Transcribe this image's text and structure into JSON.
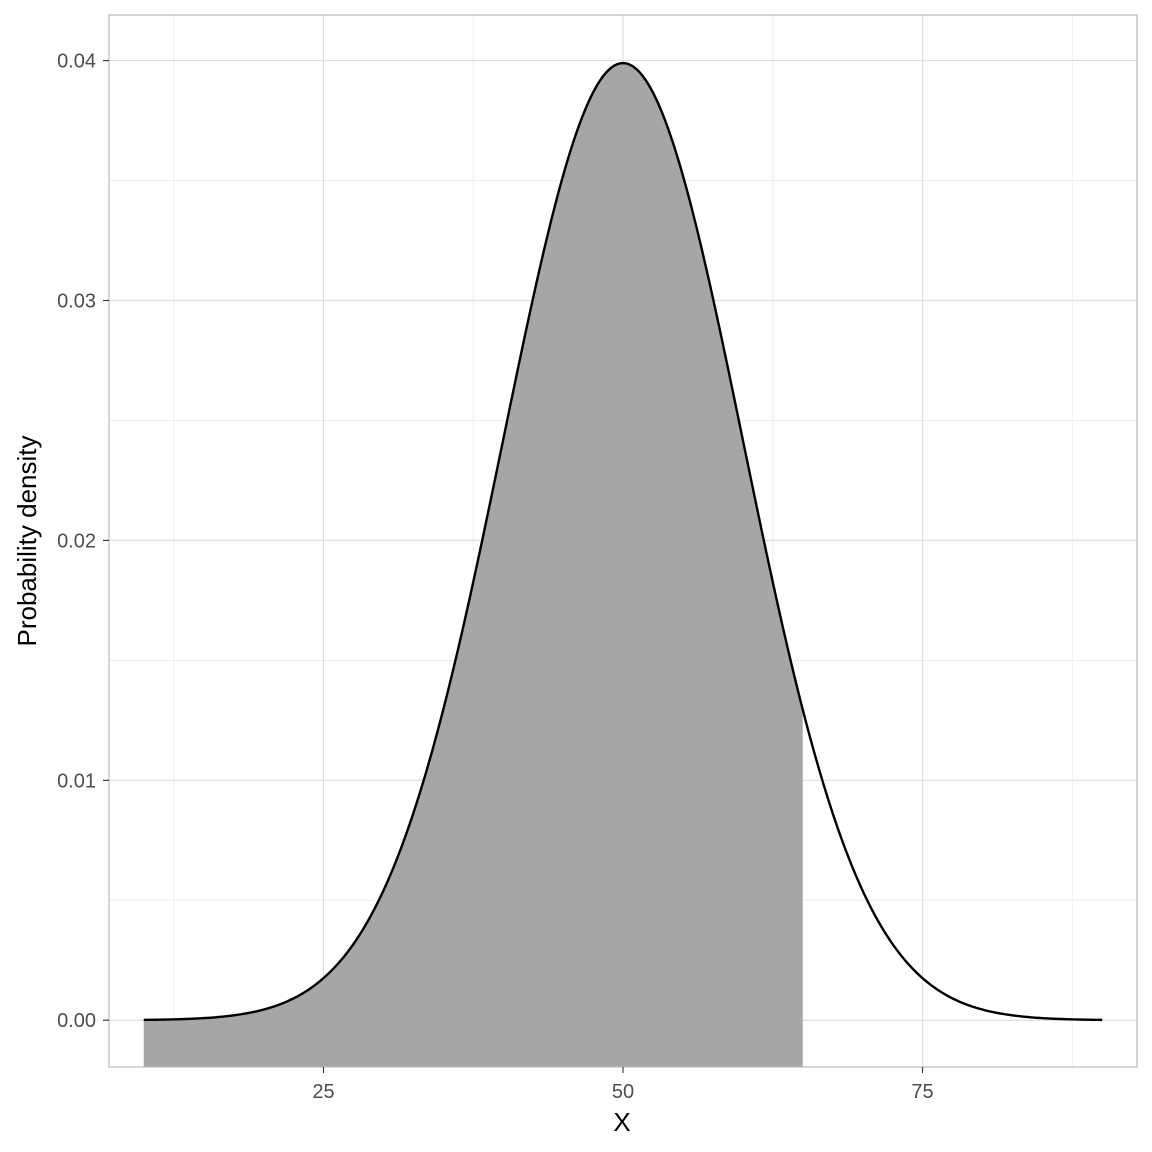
{
  "chart_data": {
    "type": "area",
    "xlabel": "X",
    "ylabel": "Probability density",
    "distribution": {
      "family": "normal",
      "mean": 50,
      "sd": 10
    },
    "curve_range": [
      10,
      90
    ],
    "shaded_region": {
      "from": 10,
      "to": 65,
      "fill": "#a6a6a6"
    },
    "xlim": [
      7.1,
      92.9
    ],
    "ylim": [
      -0.00195,
      0.0419
    ],
    "x_ticks": [
      {
        "value": 25,
        "label": "25"
      },
      {
        "value": 50,
        "label": "50"
      },
      {
        "value": 75,
        "label": "75"
      }
    ],
    "y_ticks": [
      {
        "value": 0,
        "label": "0.00"
      },
      {
        "value": 0.01,
        "label": "0.01"
      },
      {
        "value": 0.02,
        "label": "0.02"
      },
      {
        "value": 0.03,
        "label": "0.03"
      },
      {
        "value": 0.04,
        "label": "0.04"
      }
    ],
    "x_minor_ticks": [
      12.5,
      37.5,
      62.5,
      87.5
    ],
    "y_minor_ticks": [
      0.005,
      0.015,
      0.025,
      0.035
    ],
    "grid": true,
    "legend": "none",
    "colors": {
      "curve": "#000000",
      "panel_border": "#b3b3b3",
      "grid_major": "#dedede",
      "grid_minor": "#eeeeee"
    }
  }
}
